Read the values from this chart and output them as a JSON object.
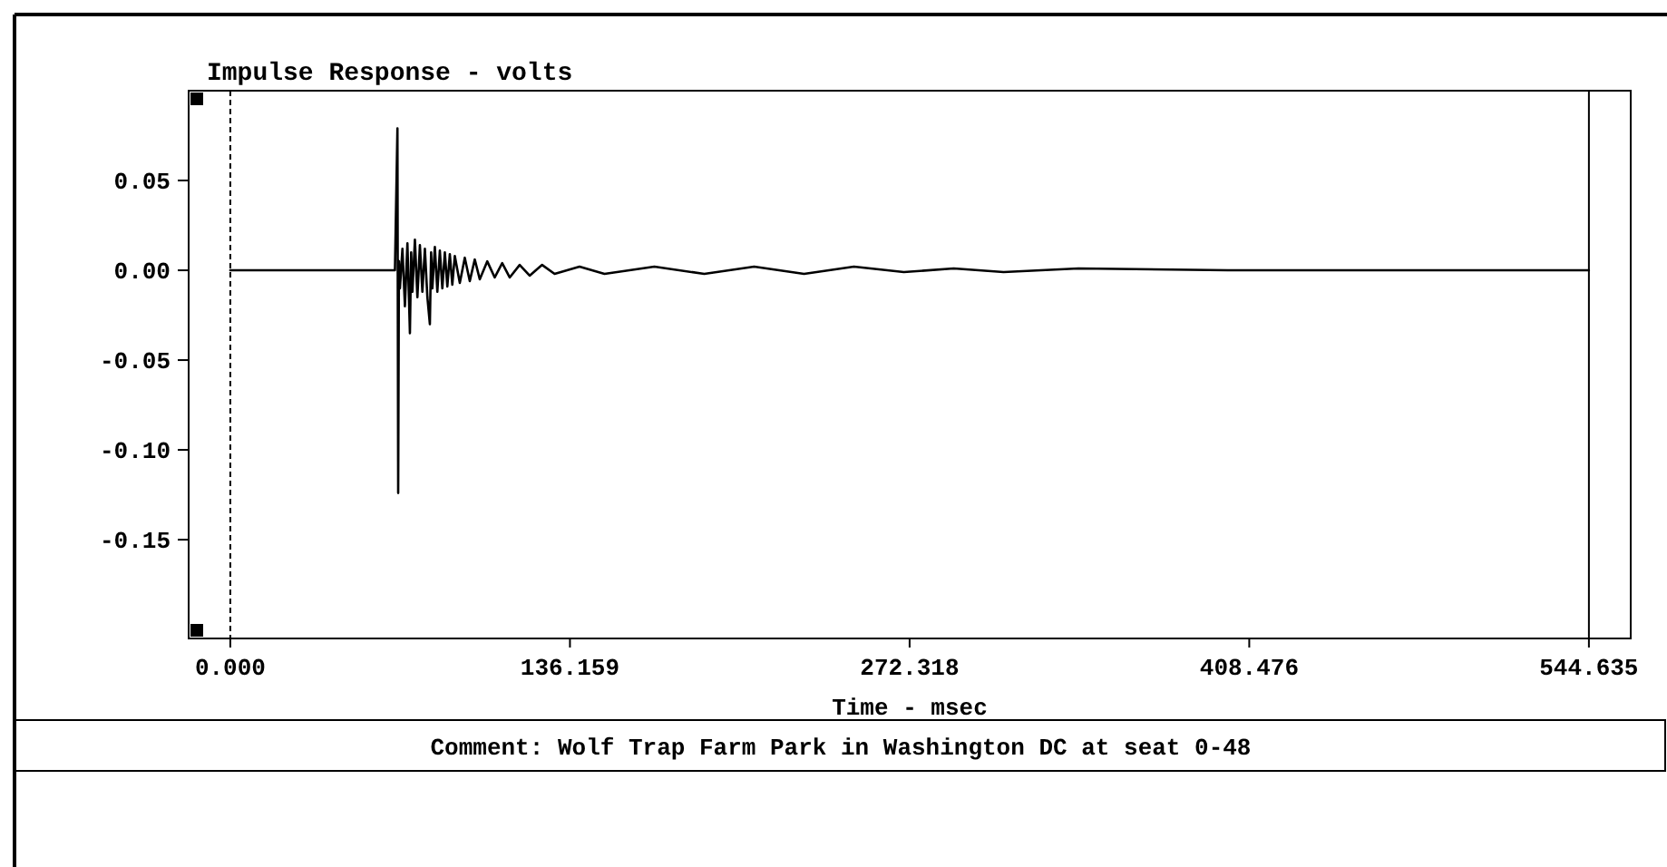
{
  "chart_data": {
    "type": "line",
    "title": "Impulse Response - volts",
    "xlabel": "Time - msec",
    "xlim": [
      -16.7,
      561.4
    ],
    "ylim": [
      -0.205,
      0.1
    ],
    "xticks": [
      {
        "value": 0,
        "label": "0.000"
      },
      136.159,
      272.318,
      408.476,
      544.635
    ],
    "yticks": [
      0.05,
      {
        "value": 0,
        "label": "0.00"
      },
      -0.05,
      {
        "value": -0.1,
        "label": "-0.10"
      },
      -0.15
    ],
    "ref_lines": [
      {
        "axis": "x",
        "value": 0,
        "line_style": "dashed",
        "color": "#000000"
      },
      {
        "axis": "x",
        "value": 544.635,
        "line_style": "solid",
        "color": "#000000"
      }
    ],
    "annotations": [
      "Comment: Wolf Trap Farm Park in Washington DC at seat 0-48"
    ],
    "series": [
      {
        "color": "#000000",
        "x": [
          0,
          20,
          40,
          60,
          66,
          67,
          67.3,
          67.6,
          68,
          69,
          70,
          71,
          72,
          72.5,
          73,
          74,
          75,
          76,
          77,
          78,
          79,
          80,
          80.5,
          81,
          82,
          83,
          84,
          85,
          86,
          87,
          88,
          89,
          90,
          92,
          94,
          96,
          98,
          100,
          103,
          106,
          109,
          112,
          116,
          120,
          125,
          130,
          140,
          150,
          170,
          190,
          210,
          230,
          250,
          270,
          290,
          310,
          340,
          400,
          544.635
        ],
        "values": [
          0,
          0,
          0,
          0,
          0,
          0.079,
          -0.124,
          0.005,
          -0.01,
          0.012,
          -0.02,
          0.015,
          -0.035,
          0.01,
          -0.012,
          0.017,
          -0.015,
          0.014,
          -0.012,
          0.012,
          -0.015,
          -0.03,
          0.01,
          -0.01,
          0.013,
          -0.012,
          0.011,
          -0.01,
          0.01,
          -0.009,
          0.009,
          -0.008,
          0.008,
          -0.007,
          0.007,
          -0.006,
          0.006,
          -0.005,
          0.005,
          -0.004,
          0.004,
          -0.004,
          0.003,
          -0.003,
          0.003,
          -0.002,
          0.002,
          -0.002,
          0.002,
          -0.002,
          0.002,
          -0.002,
          0.002,
          -0.001,
          0.001,
          -0.001,
          0.001,
          0,
          0
        ]
      }
    ]
  }
}
